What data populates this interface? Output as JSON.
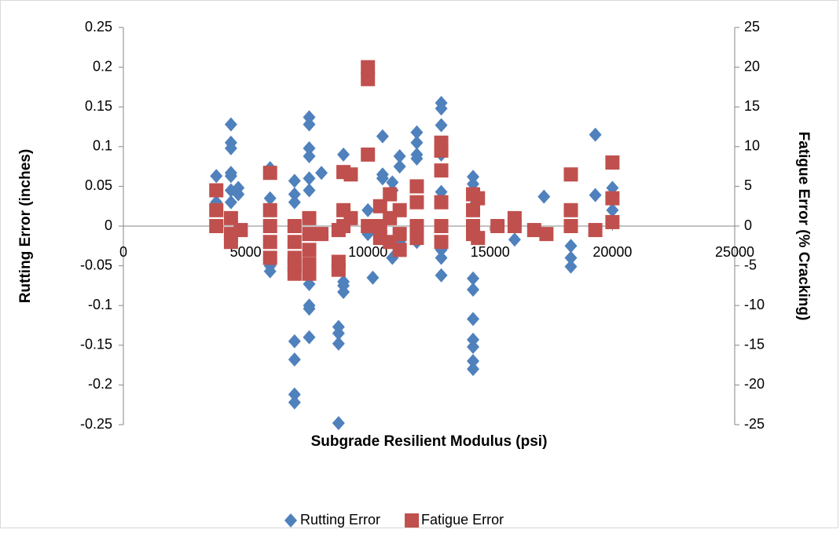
{
  "chart_data": {
    "type": "scatter",
    "xlabel": "Subgrade Resilient Modulus (psi)",
    "ylabel": "Rutting Error (inches)",
    "y2label": "Fatigue Error (% Cracking)",
    "xlim": [
      0,
      25000
    ],
    "xticks": [
      0,
      5000,
      10000,
      15000,
      20000,
      25000
    ],
    "ylim": [
      -0.25,
      0.25
    ],
    "yticks": [
      -0.25,
      -0.2,
      -0.15,
      -0.1,
      -0.05,
      0,
      0.05,
      0.1,
      0.15,
      0.2,
      0.25
    ],
    "y2lim": [
      -25,
      25
    ],
    "y2ticks": [
      -25,
      -20,
      -15,
      -10,
      -5,
      0,
      5,
      10,
      15,
      20,
      25
    ],
    "grid": false,
    "legend": "bottom",
    "series": [
      {
        "name": "Rutting Error",
        "color": "#4f81bd",
        "marker": "diamond",
        "x": [
          3800,
          3800,
          3800,
          4400,
          4400,
          4400,
          4400,
          4400,
          4400,
          4400,
          4400,
          4700,
          4700,
          6000,
          6000,
          6000,
          6000,
          6000,
          7000,
          7000,
          7000,
          7000,
          7000,
          7000,
          7000,
          7600,
          7600,
          7600,
          7600,
          7600,
          7600,
          7600,
          7600,
          7600,
          7600,
          8100,
          8800,
          8800,
          8800,
          8800,
          9000,
          9000,
          9000,
          9000,
          10000,
          10000,
          10200,
          10600,
          10600,
          10600,
          11000,
          11000,
          11000,
          11300,
          11300,
          11300,
          12000,
          12000,
          12000,
          12000,
          12000,
          13000,
          13000,
          13000,
          13000,
          13000,
          13000,
          13000,
          13000,
          14300,
          14300,
          14300,
          14300,
          14300,
          14300,
          14300,
          14300,
          14300,
          14300,
          16000,
          17200,
          18300,
          18300,
          18300,
          19300,
          19300,
          20000,
          20000
        ],
        "values": [
          0.063,
          0.03,
          0.0,
          0.128,
          0.105,
          0.098,
          0.067,
          0.063,
          0.045,
          0.03,
          -0.01,
          0.048,
          0.04,
          0.073,
          0.035,
          -0.04,
          -0.05,
          -0.057,
          0.057,
          0.04,
          0.03,
          -0.145,
          -0.168,
          -0.212,
          -0.222,
          0.137,
          0.128,
          0.098,
          0.088,
          0.06,
          0.045,
          -0.073,
          -0.1,
          -0.104,
          -0.14,
          0.067,
          -0.127,
          -0.135,
          -0.148,
          -0.248,
          0.09,
          -0.07,
          -0.083,
          -0.075,
          0.02,
          -0.01,
          -0.065,
          0.113,
          0.065,
          0.06,
          0.055,
          0.045,
          -0.04,
          0.088,
          0.075,
          -0.02,
          0.118,
          0.105,
          0.09,
          0.085,
          -0.02,
          0.155,
          0.148,
          0.127,
          0.09,
          0.043,
          -0.03,
          -0.04,
          -0.062,
          0.062,
          0.053,
          0.025,
          -0.066,
          -0.08,
          -0.117,
          -0.143,
          -0.152,
          -0.17,
          -0.18,
          -0.017,
          0.037,
          -0.025,
          -0.04,
          -0.051,
          0.115,
          0.039,
          0.048,
          0.02
        ]
      },
      {
        "name": "Fatigue Error",
        "color": "#c0504d",
        "marker": "square",
        "axis": "y2",
        "x": [
          3800,
          3800,
          3800,
          4400,
          4400,
          4400,
          4800,
          6000,
          6000,
          6000,
          6000,
          6000,
          7000,
          7000,
          7000,
          7000,
          7000,
          7600,
          7600,
          7600,
          7600,
          7600,
          8100,
          8800,
          8800,
          8800,
          9000,
          9000,
          9000,
          9300,
          9300,
          10000,
          10000,
          10000,
          10000,
          10500,
          10500,
          10500,
          10900,
          10900,
          10900,
          11300,
          11300,
          11300,
          12000,
          12000,
          12000,
          12000,
          13000,
          13000,
          13000,
          13000,
          13000,
          13000,
          14300,
          14300,
          14300,
          14300,
          14500,
          14500,
          15300,
          16000,
          16000,
          16800,
          17300,
          18300,
          18300,
          18300,
          19300,
          20000,
          20000,
          20000
        ],
        "values": [
          4.5,
          2,
          0,
          1,
          -1,
          -2,
          -0.5,
          6.7,
          2,
          0,
          -2,
          -4,
          0,
          -2,
          -4,
          -5,
          -6,
          1,
          -1,
          -3,
          -4.8,
          -6,
          -1,
          -0.5,
          -4.5,
          -5.5,
          6.8,
          2,
          0,
          6.5,
          1,
          20,
          18.5,
          9,
          0,
          2.5,
          0,
          -1.5,
          4,
          1,
          -2,
          2,
          -1,
          -3,
          5,
          3,
          0,
          -1.5,
          10.5,
          9.5,
          7,
          3,
          0,
          -2,
          4,
          2,
          0,
          -1,
          3.5,
          -1.5,
          0,
          1,
          0,
          -0.5,
          -1,
          6.5,
          2,
          0,
          -0.5,
          8,
          3.5,
          0.5
        ]
      }
    ]
  }
}
